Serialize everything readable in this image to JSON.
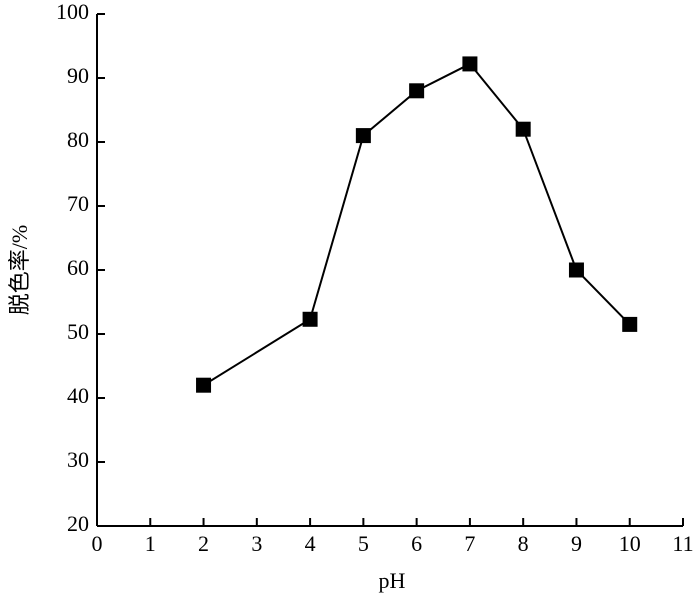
{
  "chart_data": {
    "type": "line",
    "x_label": "pH",
    "y_label": "脱色率/%",
    "x": [
      2,
      4,
      5,
      6,
      7,
      8,
      9,
      10
    ],
    "series": [
      {
        "color": "#000000",
        "values": [
          42,
          52.3,
          81,
          88,
          92.2,
          82,
          60,
          51.5
        ]
      }
    ],
    "xlim": [
      0,
      11
    ],
    "xticks": [
      0,
      1,
      2,
      3,
      4,
      5,
      6,
      7,
      8,
      9,
      10,
      11
    ],
    "ylim": [
      20,
      100
    ],
    "yticks": [
      20,
      30,
      40,
      50,
      60,
      70,
      80,
      90,
      100
    ],
    "marker": "square",
    "grid": false
  }
}
